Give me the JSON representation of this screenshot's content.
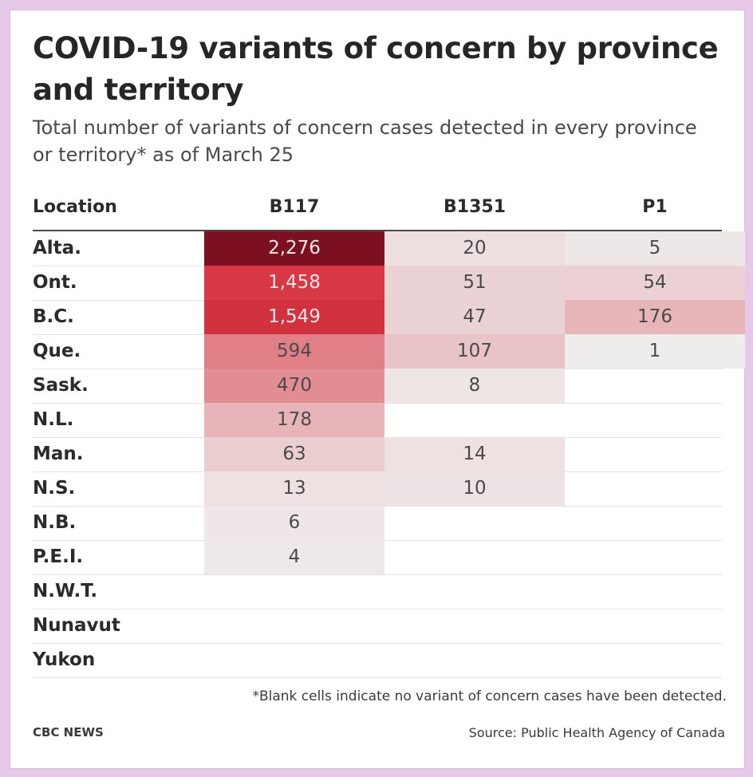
{
  "title": "COVID-19 variants of concern by province and territory",
  "subtitle": "Total number of variants of concern cases detected in every province or territory* as of March 25",
  "footnote": "*Blank cells indicate no variant of concern cases have been detected.",
  "brand": "CBC NEWS",
  "source": "Source: Public Health Agency of Canada",
  "colors": {
    "scale_high": "#7a1020",
    "scale_mid": "#d6343f",
    "scale_low": "#efefef",
    "header_rule": "#4a4a4a"
  },
  "chart_data": {
    "type": "heatmap",
    "columns": [
      "Location",
      "B117",
      "B1351",
      "P1"
    ],
    "rows": [
      {
        "label": "Alta.",
        "values": [
          "2,276",
          "20",
          "5"
        ]
      },
      {
        "label": "Ont.",
        "values": [
          "1,458",
          "51",
          "54"
        ]
      },
      {
        "label": "B.C.",
        "values": [
          "1,549",
          "47",
          "176"
        ]
      },
      {
        "label": "Que.",
        "values": [
          "594",
          "107",
          "1"
        ]
      },
      {
        "label": "Sask.",
        "values": [
          "470",
          "8",
          ""
        ]
      },
      {
        "label": "N.L.",
        "values": [
          "178",
          "",
          ""
        ]
      },
      {
        "label": "Man.",
        "values": [
          "63",
          "14",
          ""
        ]
      },
      {
        "label": "N.S.",
        "values": [
          "13",
          "10",
          ""
        ]
      },
      {
        "label": "N.B.",
        "values": [
          "6",
          "",
          ""
        ]
      },
      {
        "label": "P.E.I.",
        "values": [
          "4",
          "",
          ""
        ]
      },
      {
        "label": "N.W.T.",
        "values": [
          "",
          "",
          ""
        ]
      },
      {
        "label": "Nunavut",
        "values": [
          "",
          "",
          ""
        ]
      },
      {
        "label": "Yukon",
        "values": [
          "",
          "",
          ""
        ]
      }
    ]
  }
}
